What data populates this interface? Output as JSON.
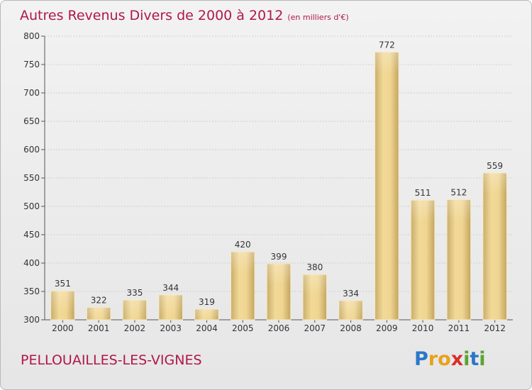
{
  "title": "Autres Revenus Divers de 2000 à 2012",
  "subtitle": "(en milliers d'€)",
  "place": "PELLOUAILLES-LES-VIGNES",
  "logo": {
    "letters": [
      "P",
      "r",
      "o",
      "x",
      "i",
      "t",
      "i"
    ],
    "text": "Proxiti"
  },
  "colors": {
    "title": "#b0174a",
    "bar_light": "#f5dea0",
    "bar_dark": "#c9ad6a"
  },
  "chart_data": {
    "type": "bar",
    "categories": [
      "2000",
      "2001",
      "2002",
      "2003",
      "2004",
      "2005",
      "2006",
      "2007",
      "2008",
      "2009",
      "2010",
      "2011",
      "2012"
    ],
    "values": [
      351,
      322,
      335,
      344,
      319,
      420,
      399,
      380,
      334,
      772,
      511,
      512,
      559
    ],
    "title": "Autres Revenus Divers de 2000 à 2012",
    "subtitle": "(en milliers d'€)",
    "xlabel": "",
    "ylabel": "",
    "ylim": [
      300,
      800
    ],
    "yticks": [
      300,
      350,
      400,
      450,
      500,
      550,
      600,
      650,
      700,
      750,
      800
    ],
    "grid": true
  }
}
